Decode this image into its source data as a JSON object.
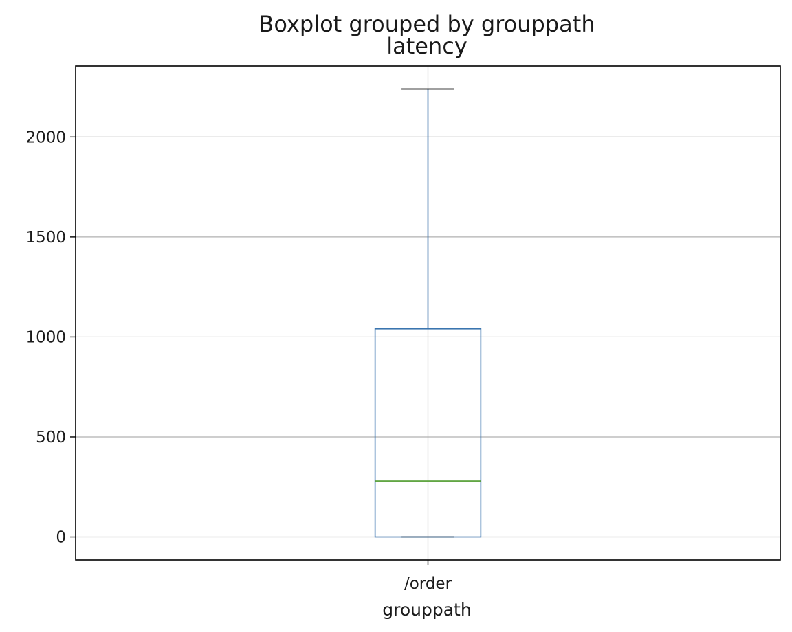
{
  "chart_data": {
    "type": "box",
    "suptitle": "Boxplot grouped by grouppath",
    "title": "latency",
    "xlabel": "grouppath",
    "ylabel": "",
    "categories": [
      "/order"
    ],
    "boxes": [
      {
        "category": "/order",
        "whisker_low": 0,
        "q1": 0,
        "median": 280,
        "q3": 1040,
        "whisker_high": 2240
      }
    ],
    "ylim": [
      -115,
      2355
    ],
    "yticks": [
      0,
      500,
      1000,
      1500,
      2000
    ],
    "grid": true,
    "colors": {
      "box": "#3b75af",
      "whisker": "#3b75af",
      "cap": "#000000",
      "median": "#4c9a2a",
      "grid": "#b0b0b0",
      "frame": "#000000"
    }
  }
}
